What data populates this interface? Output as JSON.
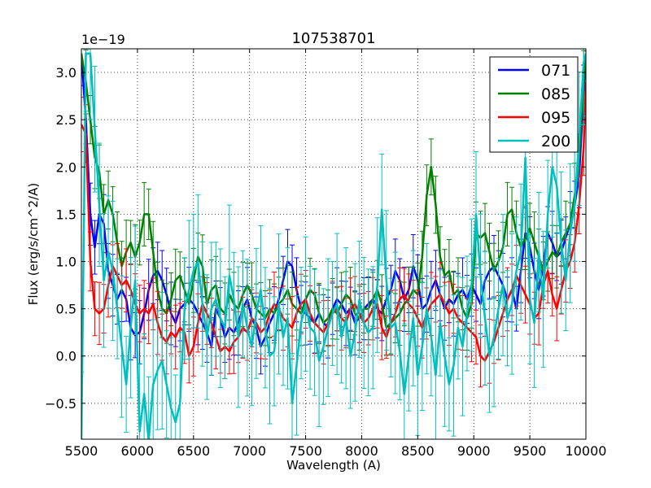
{
  "chart_data": {
    "type": "line",
    "title": "107538701",
    "xlabel": "Wavelength (A)",
    "ylabel": "Flux (erg/s/cm^2/A)",
    "offset_text": "1e−19",
    "xlim": [
      5500,
      10000
    ],
    "ylim": [
      -0.88,
      3.25
    ],
    "x_ticks": [
      5500,
      6000,
      6500,
      7000,
      7500,
      8000,
      8500,
      9000,
      9500,
      10000
    ],
    "y_ticks": [
      -0.5,
      0.0,
      0.5,
      1.0,
      1.5,
      2.0,
      2.5,
      3.0
    ],
    "y_tick_labels": [
      "−0.5",
      "0.0",
      "0.5",
      "1.0",
      "1.5",
      "2.0",
      "2.5",
      "3.0"
    ],
    "grid": true,
    "legend_position": "top-right",
    "series": [
      {
        "name": "071",
        "color": "#0000ff",
        "x": [
          5500,
          5540,
          5580,
          5620,
          5660,
          5700,
          5740,
          5780,
          5820,
          5860,
          5900,
          5940,
          5980,
          6020,
          6060,
          6100,
          6140,
          6180,
          6220,
          6260,
          6300,
          6340,
          6380,
          6420,
          6460,
          6500,
          6540,
          6580,
          6620,
          6660,
          6700,
          6740,
          6780,
          6820,
          6860,
          6900,
          6940,
          6980,
          7020,
          7060,
          7100,
          7140,
          7180,
          7220,
          7260,
          7300,
          7340,
          7380,
          7420,
          7460,
          7500,
          7540,
          7580,
          7620,
          7660,
          7700,
          7740,
          7780,
          7820,
          7860,
          7900,
          7940,
          7980,
          8020,
          8060,
          8100,
          8140,
          8180,
          8220,
          8260,
          8300,
          8340,
          8380,
          8420,
          8460,
          8500,
          8540,
          8580,
          8620,
          8660,
          8700,
          8740,
          8780,
          8820,
          8860,
          8900,
          8940,
          8980,
          9020,
          9060,
          9100,
          9140,
          9180,
          9220,
          9260,
          9300,
          9340,
          9380,
          9420,
          9460,
          9500,
          9540,
          9580,
          9620,
          9660,
          9700,
          9740,
          9780,
          9820,
          9860,
          9900,
          9940,
          9980,
          10000
        ],
        "y": [
          3.2,
          2.5,
          1.5,
          1.15,
          1.5,
          1.4,
          0.9,
          0.75,
          0.6,
          0.7,
          0.6,
          0.3,
          0.22,
          0.25,
          0.45,
          0.7,
          0.85,
          0.9,
          0.8,
          0.65,
          0.45,
          0.35,
          0.5,
          0.55,
          0.6,
          0.55,
          0.45,
          0.35,
          0.25,
          0.1,
          0.5,
          0.4,
          0.2,
          0.3,
          0.25,
          0.35,
          0.5,
          0.6,
          0.4,
          0.3,
          0.1,
          0.2,
          0.35,
          0.45,
          0.6,
          0.8,
          1.0,
          0.95,
          0.7,
          0.5,
          0.45,
          0.4,
          0.35,
          0.45,
          0.35,
          0.3,
          0.5,
          0.6,
          0.55,
          0.45,
          0.5,
          0.35,
          0.4,
          0.5,
          0.55,
          0.6,
          0.5,
          0.45,
          0.6,
          0.7,
          0.9,
          0.8,
          0.6,
          0.7,
          0.95,
          0.8,
          0.5,
          0.55,
          0.7,
          0.8,
          0.65,
          0.5,
          0.6,
          0.55,
          0.65,
          0.7,
          0.6,
          0.75,
          0.65,
          0.55,
          0.8,
          0.9,
          0.95,
          0.85,
          0.75,
          0.6,
          0.7,
          0.5,
          0.9,
          1.3,
          1.15,
          0.9,
          0.7,
          0.95,
          1.3,
          1.2,
          1.05,
          1.1,
          1.25,
          1.4,
          1.6,
          1.9,
          2.8,
          3.2
        ]
      },
      {
        "name": "085",
        "color": "#008000",
        "x": [
          5500,
          5540,
          5580,
          5620,
          5660,
          5700,
          5740,
          5780,
          5820,
          5860,
          5900,
          5940,
          5980,
          6020,
          6060,
          6100,
          6140,
          6180,
          6220,
          6260,
          6300,
          6340,
          6380,
          6420,
          6460,
          6500,
          6540,
          6580,
          6620,
          6660,
          6700,
          6740,
          6780,
          6820,
          6860,
          6900,
          6940,
          6980,
          7020,
          7060,
          7100,
          7140,
          7180,
          7220,
          7260,
          7300,
          7340,
          7380,
          7420,
          7460,
          7500,
          7540,
          7580,
          7620,
          7660,
          7700,
          7740,
          7780,
          7820,
          7860,
          7900,
          7940,
          7980,
          8020,
          8060,
          8100,
          8140,
          8180,
          8220,
          8260,
          8300,
          8340,
          8380,
          8420,
          8460,
          8500,
          8540,
          8580,
          8620,
          8660,
          8700,
          8740,
          8780,
          8820,
          8860,
          8900,
          8940,
          8980,
          9020,
          9060,
          9100,
          9140,
          9180,
          9220,
          9260,
          9300,
          9340,
          9380,
          9420,
          9460,
          9500,
          9540,
          9580,
          9620,
          9660,
          9700,
          9740,
          9780,
          9820,
          9860,
          9900,
          9940,
          9980,
          10000
        ],
        "y": [
          3.2,
          2.9,
          2.5,
          2.1,
          1.95,
          1.5,
          1.65,
          1.5,
          1.2,
          0.95,
          1.1,
          1.2,
          1.05,
          1.2,
          1.5,
          1.5,
          1.1,
          0.7,
          0.5,
          0.45,
          0.6,
          0.8,
          0.85,
          0.7,
          0.55,
          0.8,
          1.05,
          0.95,
          0.55,
          0.7,
          0.75,
          0.5,
          0.45,
          0.65,
          0.55,
          0.5,
          0.65,
          0.75,
          0.65,
          0.5,
          0.45,
          0.4,
          0.5,
          0.45,
          0.55,
          0.6,
          0.7,
          0.55,
          0.5,
          0.45,
          0.6,
          0.7,
          0.65,
          0.45,
          0.35,
          0.4,
          0.5,
          0.45,
          0.55,
          0.65,
          0.6,
          0.45,
          0.4,
          0.5,
          0.5,
          0.6,
          0.7,
          0.55,
          0.3,
          0.35,
          0.4,
          0.45,
          0.55,
          0.6,
          0.7,
          0.65,
          1.05,
          1.7,
          2.0,
          1.6,
          1.05,
          0.85,
          0.9,
          0.65,
          0.7,
          0.5,
          0.4,
          0.55,
          1.3,
          1.25,
          1.3,
          1.1,
          0.9,
          1.0,
          1.15,
          1.5,
          1.55,
          1.3,
          1.15,
          1.25,
          1.35,
          1.2,
          1.05,
          0.9,
          1.0,
          1.1,
          1.05,
          1.2,
          1.3,
          1.4,
          1.7,
          2.1,
          2.9,
          3.2
        ]
      },
      {
        "name": "095",
        "color": "#ff0000",
        "x": [
          5500,
          5540,
          5580,
          5620,
          5660,
          5700,
          5740,
          5780,
          5820,
          5860,
          5900,
          5940,
          5980,
          6020,
          6060,
          6100,
          6140,
          6180,
          6220,
          6260,
          6300,
          6340,
          6380,
          6420,
          6460,
          6500,
          6540,
          6580,
          6620,
          6660,
          6700,
          6740,
          6780,
          6820,
          6860,
          6900,
          6940,
          6980,
          7020,
          7060,
          7100,
          7140,
          7180,
          7220,
          7260,
          7300,
          7340,
          7380,
          7420,
          7460,
          7500,
          7540,
          7580,
          7620,
          7660,
          7700,
          7740,
          7780,
          7820,
          7860,
          7900,
          7940,
          7980,
          8020,
          8060,
          8100,
          8140,
          8180,
          8220,
          8260,
          8300,
          8340,
          8380,
          8420,
          8460,
          8500,
          8540,
          8580,
          8620,
          8660,
          8700,
          8740,
          8780,
          8820,
          8860,
          8900,
          8940,
          8980,
          9020,
          9060,
          9100,
          9140,
          9180,
          9220,
          9260,
          9300,
          9340,
          9380,
          9420,
          9460,
          9500,
          9540,
          9580,
          9620,
          9660,
          9700,
          9740,
          9780,
          9820,
          9860,
          9900,
          9940,
          9980,
          10000
        ],
        "y": [
          2.45,
          2.35,
          1.0,
          0.5,
          0.45,
          0.5,
          0.75,
          0.95,
          0.85,
          0.75,
          0.8,
          0.7,
          0.55,
          0.45,
          0.5,
          0.45,
          0.55,
          0.35,
          0.2,
          0.15,
          0.25,
          0.2,
          0.3,
          0.25,
          0.0,
          0.1,
          0.35,
          0.55,
          0.45,
          0.35,
          0.2,
          0.05,
          0.1,
          0.05,
          0.15,
          0.2,
          0.3,
          0.25,
          0.4,
          0.35,
          0.25,
          0.3,
          0.45,
          0.55,
          0.5,
          0.4,
          0.35,
          0.3,
          0.45,
          0.55,
          0.6,
          0.45,
          0.35,
          0.3,
          0.25,
          0.35,
          0.45,
          0.5,
          0.4,
          0.35,
          0.5,
          0.55,
          0.45,
          0.35,
          0.4,
          0.5,
          0.55,
          0.3,
          0.2,
          0.35,
          0.45,
          0.6,
          0.65,
          0.55,
          0.5,
          0.4,
          0.3,
          0.45,
          0.55,
          0.6,
          0.65,
          0.55,
          0.45,
          0.5,
          0.4,
          0.35,
          0.3,
          0.25,
          0.2,
          0.0,
          -0.05,
          0.05,
          0.15,
          0.3,
          0.45,
          0.6,
          0.7,
          0.85,
          0.75,
          0.65,
          0.55,
          0.4,
          0.45,
          0.75,
          0.9,
          0.65,
          0.5,
          0.7,
          0.9,
          1.0,
          1.2,
          1.6,
          2.2,
          2.9
        ]
      },
      {
        "name": "200",
        "color": "#00bfbf",
        "x": [
          5500,
          5540,
          5580,
          5620,
          5660,
          5700,
          5740,
          5780,
          5820,
          5860,
          5900,
          5940,
          5980,
          6020,
          6060,
          6100,
          6140,
          6180,
          6220,
          6260,
          6300,
          6340,
          6380,
          6420,
          6460,
          6500,
          6540,
          6580,
          6620,
          6660,
          6700,
          6740,
          6780,
          6820,
          6860,
          6900,
          6940,
          6980,
          7020,
          7060,
          7100,
          7140,
          7180,
          7220,
          7260,
          7300,
          7340,
          7380,
          7420,
          7460,
          7500,
          7540,
          7580,
          7620,
          7660,
          7700,
          7740,
          7780,
          7820,
          7860,
          7900,
          7940,
          7980,
          8020,
          8060,
          8100,
          8140,
          8180,
          8220,
          8260,
          8300,
          8340,
          8380,
          8420,
          8460,
          8500,
          8540,
          8580,
          8620,
          8660,
          8700,
          8740,
          8780,
          8820,
          8860,
          8900,
          8940,
          8980,
          9020,
          9060,
          9100,
          9140,
          9180,
          9220,
          9260,
          9300,
          9340,
          9380,
          9420,
          9460,
          9500,
          9540,
          9580,
          9620,
          9660,
          9700,
          9740,
          9780,
          9820,
          9860,
          9900,
          9940,
          9980,
          10000
        ],
        "y": [
          -0.9,
          3.2,
          3.2,
          2.4,
          1.6,
          0.8,
          1.1,
          0.9,
          0.5,
          0.1,
          -0.3,
          0.3,
          0.8,
          -0.8,
          -0.4,
          -0.9,
          -0.3,
          -0.15,
          -0.05,
          -0.3,
          -0.55,
          -0.7,
          -0.5,
          0.5,
          0.7,
          0.9,
          1.0,
          0.55,
          0.2,
          0.5,
          0.6,
          0.4,
          0.3,
          0.85,
          0.6,
          0.2,
          0.55,
          0.3,
          0.1,
          0.45,
          0.7,
          0.3,
          0.0,
          0.05,
          0.55,
          0.2,
          0.4,
          -0.5,
          -0.1,
          0.35,
          0.55,
          0.3,
          0.25,
          -0.05,
          0.1,
          0.3,
          0.45,
          0.55,
          0.2,
          0.4,
          0.0,
          0.25,
          0.6,
          0.35,
          0.25,
          0.3,
          0.75,
          1.55,
          0.8,
          0.3,
          0.35,
          0.05,
          -0.4,
          0.0,
          0.4,
          -0.2,
          0.1,
          0.5,
          0.2,
          -0.2,
          0.35,
          0.0,
          -0.3,
          -0.1,
          0.3,
          0.1,
          0.45,
          0.75,
          1.5,
          0.85,
          0.4,
          0.0,
          0.2,
          0.5,
          0.75,
          0.4,
          0.55,
          0.9,
          1.1,
          2.1,
          0.6,
          0.35,
          1.1,
          0.6,
          1.5,
          2.0,
          1.8,
          1.2,
          0.8,
          1.3,
          1.6,
          2.3,
          3.1,
          3.2
        ]
      }
    ]
  }
}
